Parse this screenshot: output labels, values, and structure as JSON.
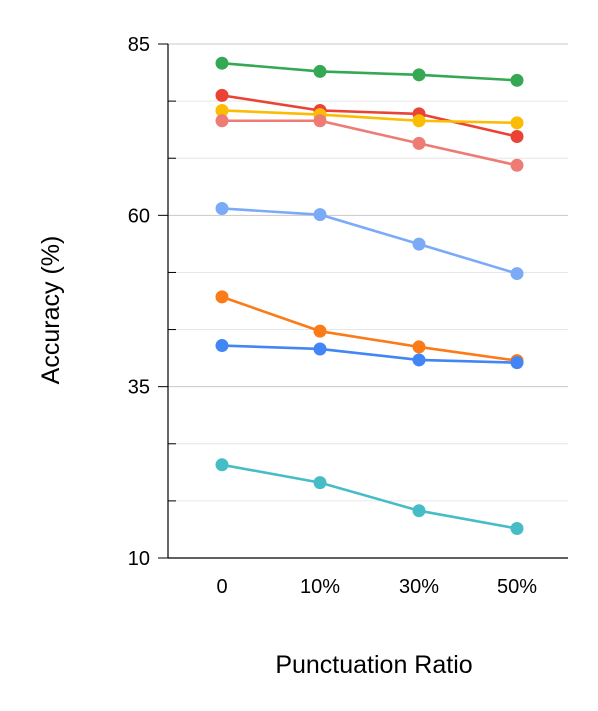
{
  "chart_data": {
    "type": "line",
    "title": "",
    "xlabel": "Punctuation Ratio",
    "ylabel": "Accuracy (%)",
    "categories": [
      "0",
      "10%",
      "30%",
      "50%"
    ],
    "ylim": [
      10,
      85
    ],
    "yticks": [
      10,
      35,
      60,
      85
    ],
    "grid": true,
    "legend": "none",
    "series": [
      {
        "color": "#34a853",
        "values": [
          82.2,
          81.0,
          80.5,
          79.7
        ]
      },
      {
        "color": "#ea4335",
        "values": [
          77.5,
          75.3,
          74.8,
          71.5
        ]
      },
      {
        "color": "#fbbc04",
        "values": [
          75.3,
          74.7,
          73.8,
          73.5
        ]
      },
      {
        "color": "#ee7b74",
        "values": [
          73.8,
          73.8,
          70.5,
          67.3
        ]
      },
      {
        "color": "#7baaf7",
        "values": [
          61.0,
          60.1,
          55.8,
          51.5
        ]
      },
      {
        "color": "#fa7b17",
        "values": [
          48.1,
          43.1,
          40.8,
          38.8
        ]
      },
      {
        "color": "#4285f4",
        "values": [
          41.0,
          40.5,
          38.9,
          38.5
        ]
      },
      {
        "color": "#46bdc6",
        "values": [
          23.6,
          21.0,
          16.9,
          14.3
        ]
      }
    ]
  }
}
